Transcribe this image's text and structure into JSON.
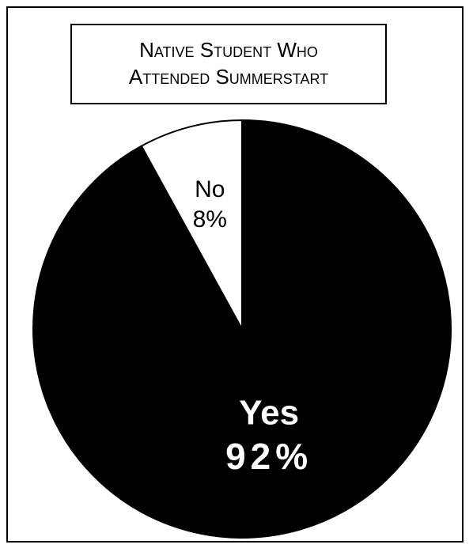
{
  "title": {
    "line1": "Native Student Who",
    "line2": "Attended Summerstart"
  },
  "chart_data": {
    "type": "pie",
    "categories": [
      "Yes",
      "No"
    ],
    "values": [
      92,
      8
    ],
    "labels": [
      {
        "category": "Yes",
        "name": "Yes",
        "percent": "92%"
      },
      {
        "category": "No",
        "name": "No",
        "percent": "8%"
      }
    ],
    "colors": [
      "#000000",
      "#ffffff"
    ],
    "label_colors": [
      "#ffffff",
      "#000000"
    ],
    "start_angle": "12 o'clock",
    "direction": "clockwise",
    "legend": "none"
  }
}
